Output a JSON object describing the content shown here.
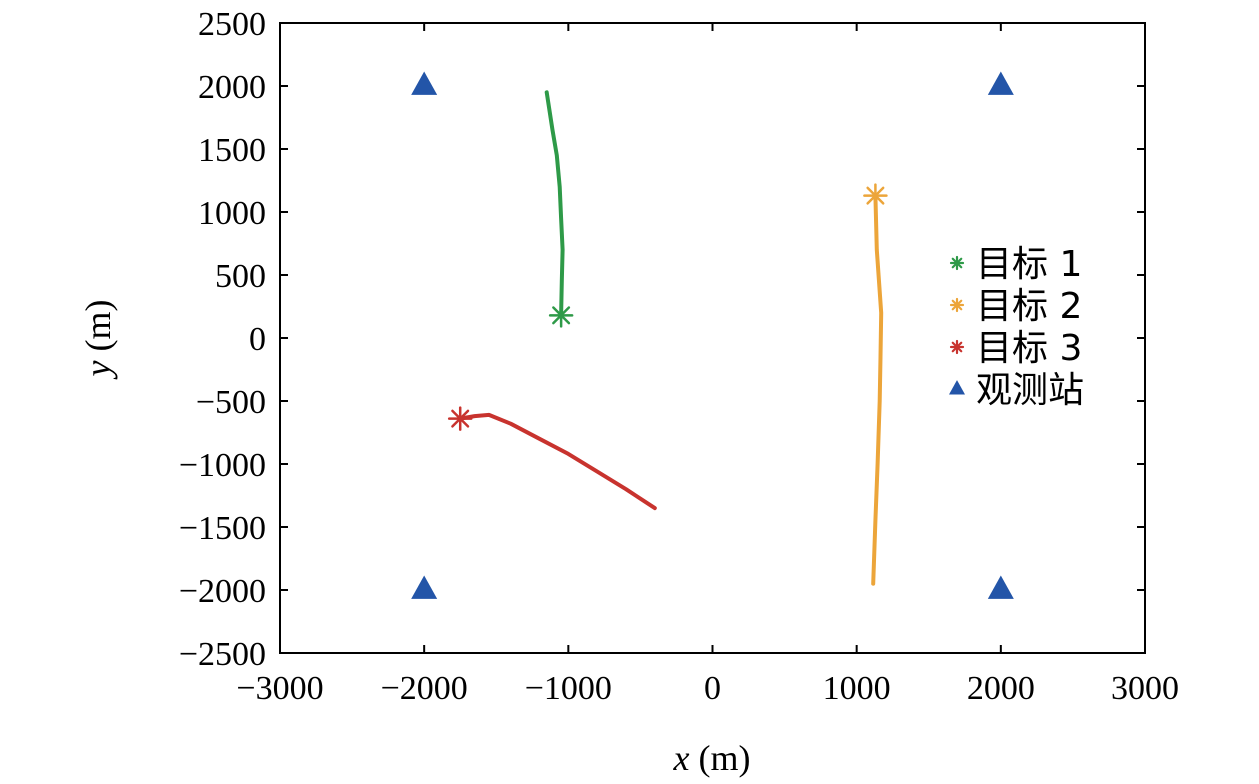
{
  "chart_data": {
    "type": "line",
    "xlabel": "x (m)",
    "ylabel": "y (m)",
    "xlim": [
      -3000,
      3000
    ],
    "ylim": [
      -2500,
      2500
    ],
    "xticks": [
      -3000,
      -2000,
      -1000,
      0,
      1000,
      2000,
      3000
    ],
    "yticks": [
      -2500,
      -2000,
      -1500,
      -1000,
      -500,
      0,
      500,
      1000,
      1500,
      2000,
      2500
    ],
    "xtick_labels": [
      "−3000",
      "−2000",
      "−1000",
      "0",
      "1000",
      "2000",
      "3000"
    ],
    "ytick_labels": [
      "−2500",
      "−2000",
      "−1500",
      "−1000",
      "−500",
      "0",
      "500",
      "1000",
      "1500",
      "2000",
      "2500"
    ],
    "grid": false,
    "legend_position": "right",
    "series": [
      {
        "name": "目标 1",
        "color": "#2e9a48",
        "marker": "asterisk",
        "start": [
          -1050,
          180
        ],
        "points": [
          [
            -1050,
            180
          ],
          [
            -1045,
            450
          ],
          [
            -1040,
            700
          ],
          [
            -1050,
            950
          ],
          [
            -1060,
            1200
          ],
          [
            -1080,
            1450
          ],
          [
            -1110,
            1650
          ],
          [
            -1150,
            1950
          ]
        ]
      },
      {
        "name": "目标 2",
        "color": "#eca53a",
        "marker": "asterisk",
        "start": [
          1130,
          1130
        ],
        "points": [
          [
            1130,
            1130
          ],
          [
            1140,
            700
          ],
          [
            1170,
            200
          ],
          [
            1165,
            -150
          ],
          [
            1160,
            -500
          ],
          [
            1145,
            -1000
          ],
          [
            1130,
            -1450
          ],
          [
            1115,
            -1950
          ]
        ]
      },
      {
        "name": "目标 3",
        "color": "#c8332e",
        "marker": "asterisk",
        "start": [
          -1750,
          -640
        ],
        "points": [
          [
            -1750,
            -640
          ],
          [
            -1650,
            -620
          ],
          [
            -1550,
            -610
          ],
          [
            -1400,
            -680
          ],
          [
            -1200,
            -800
          ],
          [
            -1000,
            -920
          ],
          [
            -800,
            -1060
          ],
          [
            -600,
            -1200
          ],
          [
            -400,
            -1350
          ]
        ]
      }
    ],
    "stations": {
      "name": "观测站",
      "color": "#2355a8",
      "marker": "triangle",
      "points": [
        [
          -2000,
          2000
        ],
        [
          2000,
          2000
        ],
        [
          -2000,
          -2000
        ],
        [
          2000,
          -2000
        ]
      ]
    }
  }
}
